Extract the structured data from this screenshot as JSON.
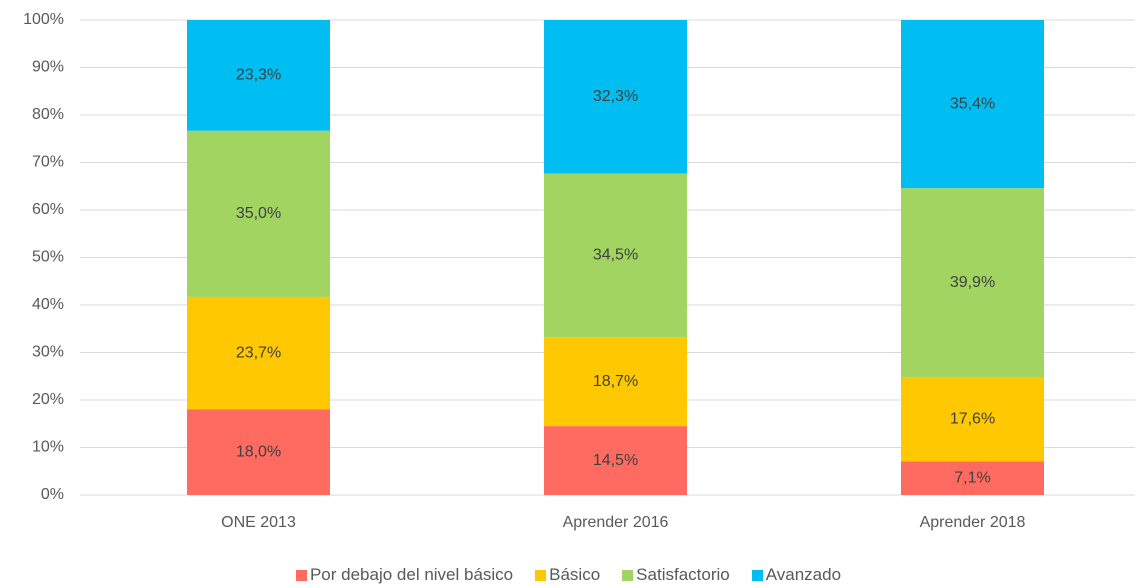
{
  "chart_data": {
    "type": "stacked_bar",
    "categories": [
      "ONE 2013",
      "Aprender 2016",
      "Aprender 2018"
    ],
    "series": [
      {
        "name": "Por debajo del nivel básico",
        "color": "#ff6b61",
        "values": [
          18.0,
          14.5,
          7.1
        ],
        "value_labels": [
          "18,0%",
          "14,5%",
          "7,1%"
        ]
      },
      {
        "name": "Básico",
        "color": "#ffc800",
        "values": [
          23.7,
          18.7,
          17.6
        ],
        "value_labels": [
          "23,7%",
          "18,7%",
          "17,6%"
        ]
      },
      {
        "name": "Satisfactorio",
        "color": "#a2d461",
        "values": [
          35.0,
          34.5,
          39.9
        ],
        "value_labels": [
          "35,0%",
          "34,5%",
          "39,9%"
        ]
      },
      {
        "name": "Avanzado",
        "color": "#00bdf2",
        "values": [
          23.3,
          32.3,
          35.4
        ],
        "value_labels": [
          "23,3%",
          "32,3%",
          "35,4%"
        ]
      }
    ],
    "ylim": [
      0,
      100
    ],
    "yticks": [
      {
        "value": 0,
        "label": "0%"
      },
      {
        "value": 10,
        "label": "10%"
      },
      {
        "value": 20,
        "label": "20%"
      },
      {
        "value": 30,
        "label": "30%"
      },
      {
        "value": 40,
        "label": "40%"
      },
      {
        "value": 50,
        "label": "50%"
      },
      {
        "value": 60,
        "label": "60%"
      },
      {
        "value": 70,
        "label": "70%"
      },
      {
        "value": 80,
        "label": "80%"
      },
      {
        "value": 90,
        "label": "90%"
      },
      {
        "value": 100,
        "label": "100%"
      }
    ],
    "grid": true,
    "legend": "bottom"
  }
}
